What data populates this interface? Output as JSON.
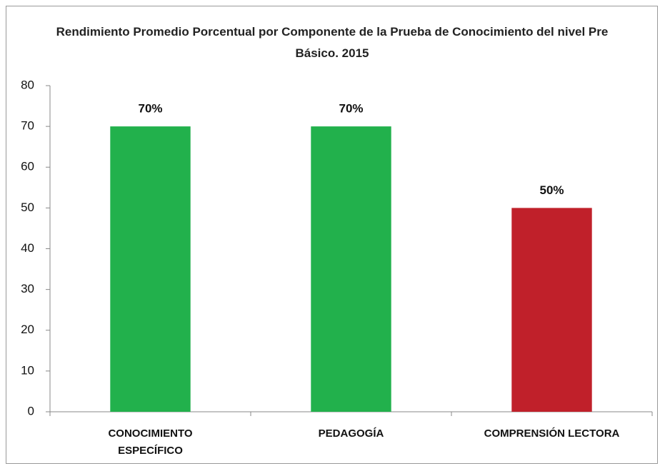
{
  "chart_data": {
    "type": "bar",
    "title": "Rendimiento Promedio Porcentual  por Componente de la Prueba de Conocimiento del nivel Pre Básico. 2015",
    "categories": [
      "CONOCIMIENTO ESPECÍFICO",
      "PEDAGOGÍA",
      "COMPRENSIÓN LECTORA"
    ],
    "values": [
      70,
      70,
      50
    ],
    "value_labels": [
      "70%",
      "70%",
      "50%"
    ],
    "colors": [
      "#22b14c",
      "#22b14c",
      "#c0202a"
    ],
    "ylim": [
      0,
      80
    ],
    "yticks": [
      0,
      10,
      20,
      30,
      40,
      50,
      60,
      70,
      80
    ],
    "grid": false
  }
}
